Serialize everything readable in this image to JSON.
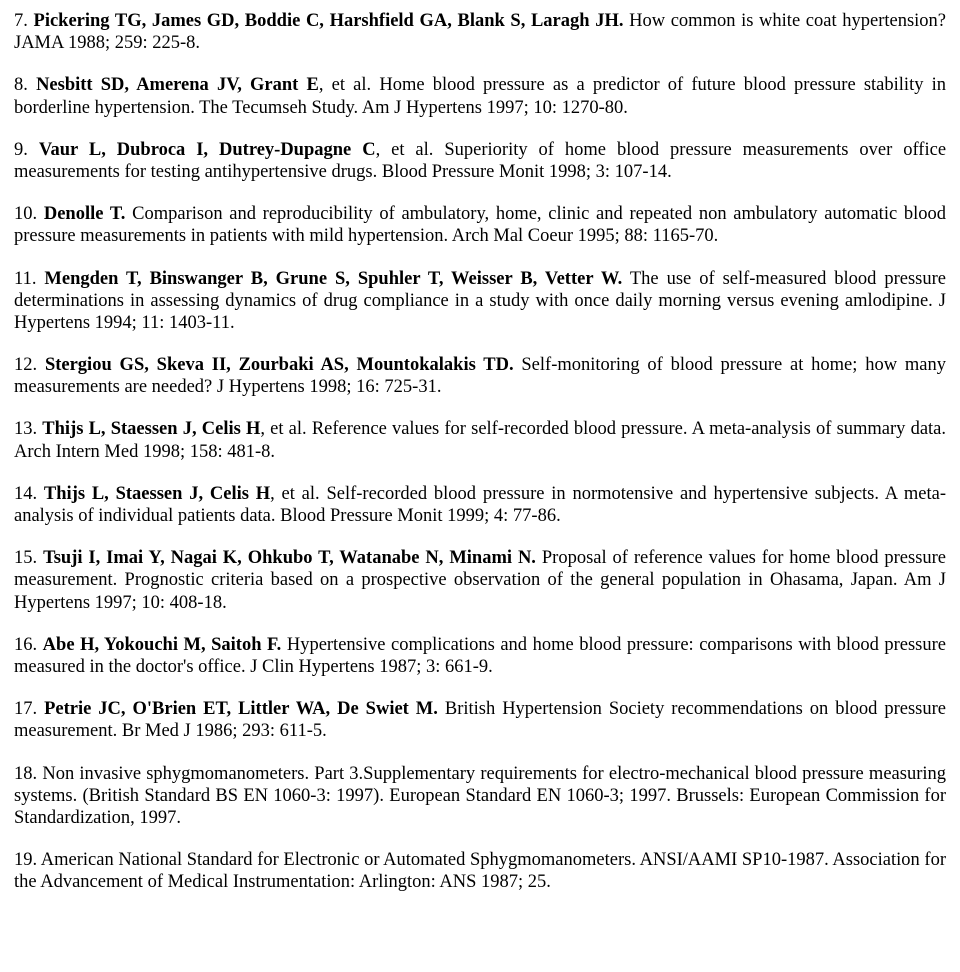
{
  "references": [
    {
      "num": "7.",
      "authors": "Pickering TG, James GD, Boddie C, Harshfield GA, Blank S, Laragh JH.",
      "title": "How common is white coat hypertension?",
      "journal": "JAMA 1988; 259: 225-8."
    },
    {
      "num": "8.",
      "authors": "Nesbitt SD, Amerena JV, Grant E",
      "etal": ", et al.",
      "title": "Home blood pressure as a predictor of future blood pressure stability in borderline hypertension. The Tecumseh Study.",
      "journal": "Am J Hypertens 1997; 10: 1270-80."
    },
    {
      "num": "9.",
      "authors": "Vaur L, Dubroca I, Dutrey-Dupagne C",
      "etal": ", et al.",
      "title": "Superiority of home blood pressure measurements over office measurements for testing antihypertensive drugs.",
      "journal": "Blood Pressure Monit 1998; 3: 107-14."
    },
    {
      "num": "10.",
      "authors": "Denolle T.",
      "title": "Comparison and reproducibility of ambulatory, home, clinic and repeated non ambulatory automatic blood pressure measurements in patients with mild hypertension.",
      "journal": "Arch Mal Coeur 1995; 88: 1165-70."
    },
    {
      "num": "11.",
      "authors": "Mengden T, Binswanger B, Grune S, Spuhler T, Weisser B, Vetter W.",
      "title": "The use of self-measured blood pressure determinations in assessing dynamics of drug compliance in a study with once daily morning versus evening amlodipine.",
      "journal": "J Hypertens 1994; 11: 1403-11."
    },
    {
      "num": "12.",
      "authors": "Stergiou GS, Skeva II, Zourbaki AS, Mountokalakis TD.",
      "title": "Self-monitoring of blood pressure at home; how many measurements are needed?",
      "journal": "J Hypertens 1998; 16: 725-31."
    },
    {
      "num": "13.",
      "authors": "Thijs L, Staessen J, Celis H",
      "etal": ", et al.",
      "title": "Reference values for self-recorded blood pressure. A meta-analysis of summary data.",
      "journal": "Arch Intern Med 1998; 158: 481-8."
    },
    {
      "num": "14.",
      "authors": "Thijs L, Staessen J, Celis H",
      "etal": ", et al.",
      "title": "Self-recorded blood pressure in normotensive and hypertensive subjects. A meta-analysis of individual patients data.",
      "journal": "Blood Pressure Monit 1999; 4: 77-86."
    },
    {
      "num": "15.",
      "authors": "Tsuji I, Imai Y, Nagai K, Ohkubo T, Watanabe N, Minami N.",
      "title": "Proposal of reference values for home blood pressure measurement. Prognostic criteria based on a prospective observation of the general population in Ohasama, Japan.",
      "journal": "Am J Hypertens 1997; 10: 408-18."
    },
    {
      "num": "16.",
      "authors": "Abe H, Yokouchi M, Saitoh F.",
      "title": "Hypertensive complications and home blood pressure: comparisons with blood pressure measured in the doctor's office.",
      "journal": "J Clin Hypertens 1987; 3: 661-9."
    },
    {
      "num": "17.",
      "authors": "Petrie JC, O'Brien ET, Littler WA, De Swiet M.",
      "title": "British Hypertension Society recommendations on blood pressure measurement.",
      "journal": "Br Med J 1986; 293: 611-5."
    },
    {
      "num": "18.",
      "title": "Non invasive sphygmomanometers. Part 3.Supplementary requirements for electro-mechanical blood pressure measuring systems. (British Standard BS EN 1060-3: 1997).",
      "journal": "European Standard EN 1060-3; 1997. Brussels: European Commission for Standardization, 1997."
    },
    {
      "num": "19.",
      "title": "American National Standard for Electronic or Automated Sphygmomanometers. ANSI/AAMI SP10-1987.",
      "journal": "Association for the Advancement of Medical Instrumentation: Arlington: ANS 1987; 25."
    }
  ]
}
